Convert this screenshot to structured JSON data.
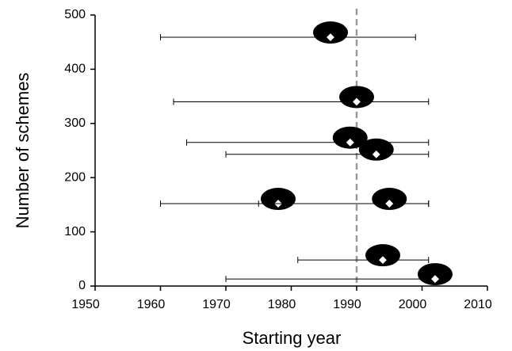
{
  "chart_data": {
    "type": "range-scatter",
    "x_label": "Starting year",
    "y_label": "Number of schemes",
    "xlim": [
      1950,
      2010
    ],
    "ylim": [
      0,
      500
    ],
    "xticks": [
      1950,
      1960,
      1970,
      1980,
      1990,
      2000,
      2010
    ],
    "yticks": [
      0,
      100,
      200,
      300,
      400,
      500
    ],
    "reference_x": 1990,
    "reference_color": "#999999",
    "color": "#000000",
    "points": [
      {
        "x": 1986,
        "y": 459,
        "xlow": 1960,
        "xhigh": 1999
      },
      {
        "x": 1990,
        "y": 340,
        "xlow": 1962,
        "xhigh": 2001
      },
      {
        "x": 1989,
        "y": 265,
        "xlow": 1964,
        "xhigh": 2001
      },
      {
        "x": 1993,
        "y": 243,
        "xlow": 1970,
        "xhigh": 2001
      },
      {
        "x": 1978,
        "y": 152,
        "xlow": 1960,
        "xhigh": 2001
      },
      {
        "x": 1995,
        "y": 152,
        "xlow": 1975,
        "xhigh": 2001
      },
      {
        "x": 1994,
        "y": 48,
        "xlow": 1981,
        "xhigh": 2001
      },
      {
        "x": 2002,
        "y": 13,
        "xlow": 1970,
        "xhigh": 2002
      }
    ]
  }
}
